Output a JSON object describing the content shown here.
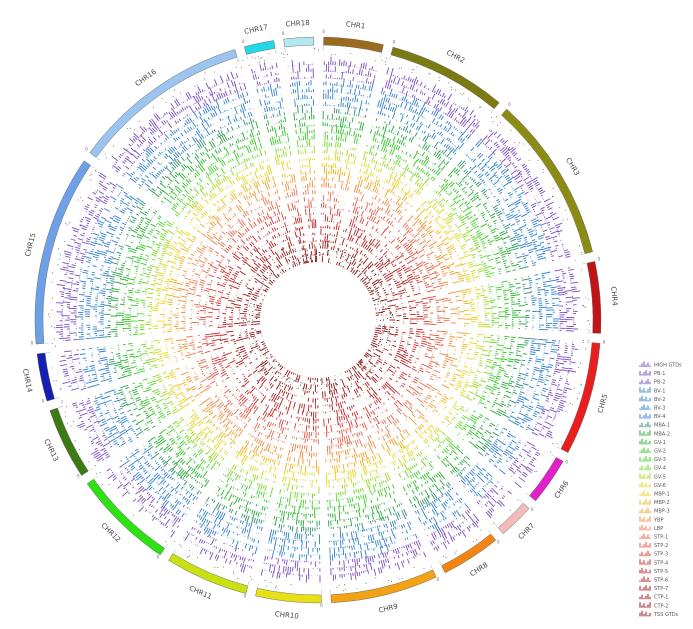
{
  "chart_data": {
    "type": "circos",
    "title": "",
    "chromosomes": [
      {
        "name": "CHR1",
        "color": "#9c6a1e",
        "size": 50
      },
      {
        "name": "CHR2",
        "color": "#7d7a14",
        "size": 100
      },
      {
        "name": "CHR3",
        "color": "#8c8c14",
        "size": 140
      },
      {
        "name": "CHR4",
        "color": "#c21414",
        "size": 60
      },
      {
        "name": "CHR5",
        "color": "#ea1e1e",
        "size": 95
      },
      {
        "name": "CHR6",
        "color": "#e020c8",
        "size": 40
      },
      {
        "name": "CHR7",
        "color": "#f2bcbc",
        "size": 30
      },
      {
        "name": "CHR8",
        "color": "#f28414",
        "size": 50
      },
      {
        "name": "CHR9",
        "color": "#f2a214",
        "size": 90
      },
      {
        "name": "CHR10",
        "color": "#e8e014",
        "size": 55
      },
      {
        "name": "CHR11",
        "color": "#c8e014",
        "size": 70
      },
      {
        "name": "CHR12",
        "color": "#2ee014",
        "size": 85
      },
      {
        "name": "CHR13",
        "color": "#3c7a14",
        "size": 60
      },
      {
        "name": "CHR14",
        "color": "#1420b4",
        "size": 40
      },
      {
        "name": "CHR15",
        "color": "#6ea0e8",
        "size": 160
      },
      {
        "name": "CHR16",
        "color": "#9cc4f0",
        "size": 150
      },
      {
        "name": "CHR17",
        "color": "#20d8e8",
        "size": 25
      },
      {
        "name": "CHR18",
        "color": "#b4e8f0",
        "size": 25
      }
    ],
    "tracks": [
      {
        "name": "HIGH GTDs",
        "color": "#7a4cc0"
      },
      {
        "name": "PB-1",
        "color": "#7a4cc0"
      },
      {
        "name": "PB-2",
        "color": "#7a4cc0"
      },
      {
        "name": "BV-1",
        "color": "#2f7fd0"
      },
      {
        "name": "BV-2",
        "color": "#2f7fd0"
      },
      {
        "name": "BV-3",
        "color": "#2f7fd0"
      },
      {
        "name": "BV-4",
        "color": "#2f7fd0"
      },
      {
        "name": "MBA-1",
        "color": "#2f8f6a"
      },
      {
        "name": "MBA-2",
        "color": "#22a83a"
      },
      {
        "name": "GV-1",
        "color": "#22b22a"
      },
      {
        "name": "GV-2",
        "color": "#2ec21e"
      },
      {
        "name": "GV-3",
        "color": "#3cd02a"
      },
      {
        "name": "GV-4",
        "color": "#66d81e"
      },
      {
        "name": "GV-5",
        "color": "#a2d81e"
      },
      {
        "name": "GV-6",
        "color": "#d8d81e"
      },
      {
        "name": "MBP-1",
        "color": "#ead21a"
      },
      {
        "name": "MBP-2",
        "color": "#f0b41a"
      },
      {
        "name": "MBP-3",
        "color": "#f29a2a"
      },
      {
        "name": "YBP",
        "color": "#f28a3c"
      },
      {
        "name": "LBP",
        "color": "#f0784a"
      },
      {
        "name": "STP-1",
        "color": "#e8644a"
      },
      {
        "name": "STP-2",
        "color": "#e05040"
      },
      {
        "name": "STP-3",
        "color": "#d43c36"
      },
      {
        "name": "STP-4",
        "color": "#c82a2a"
      },
      {
        "name": "STP-5",
        "color": "#bc2020"
      },
      {
        "name": "STP-6",
        "color": "#b01c1c"
      },
      {
        "name": "STP-7",
        "color": "#a81818"
      },
      {
        "name": "CTP-1",
        "color": "#a01818"
      },
      {
        "name": "CTP-2",
        "color": "#981616"
      },
      {
        "name": "TSS GTDs",
        "color": "#901414"
      }
    ]
  }
}
